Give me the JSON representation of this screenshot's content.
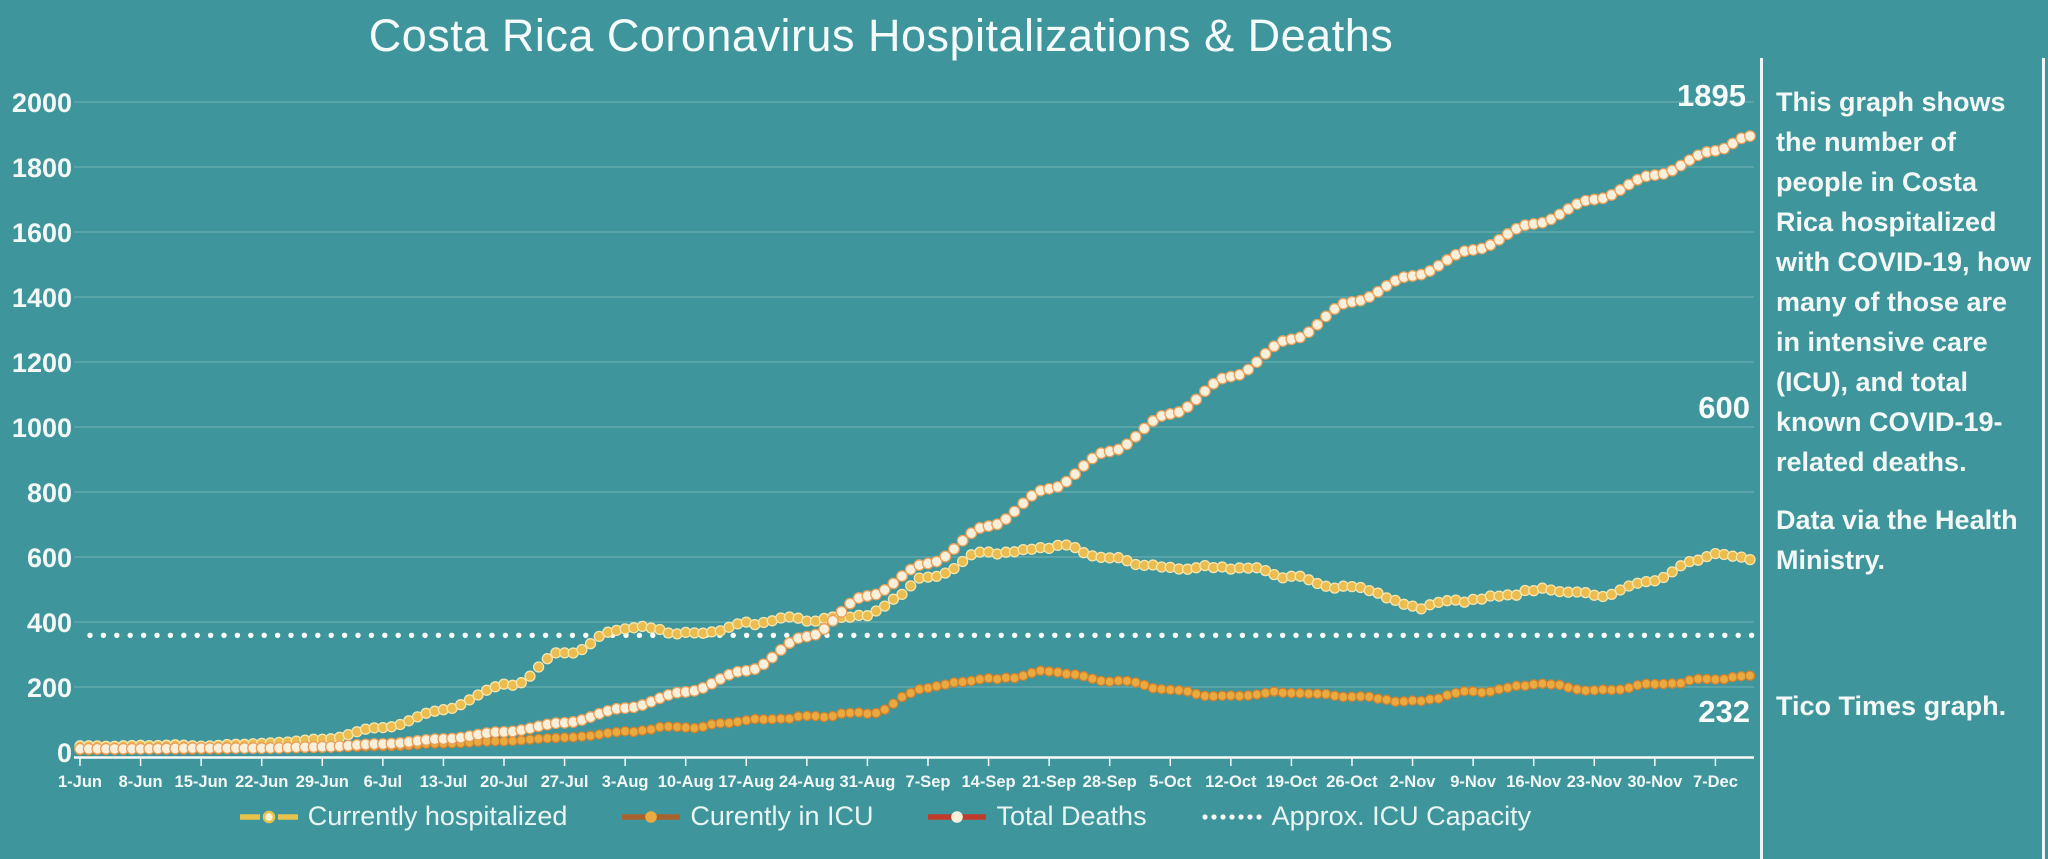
{
  "title": "Costa Rica Coronavirus Hospitalizations & Deaths",
  "colors": {
    "background": "#3E969C",
    "divider": "#EFF5F3",
    "text": "#F3F8F6",
    "gridline": "rgba(255,255,255,0.22)",
    "axis": "#F7FBF8",
    "capacity_dots": "#FBFEFA"
  },
  "side_panel": {
    "description": "This graph shows the number of people in Costa Rica hospitalized with COVID-19, how many of those are in intensive care (ICU), and total known COVID-19-related deaths.",
    "source": "Data via the Health Ministry.",
    "credit": "Tico Times graph."
  },
  "chart_data": {
    "type": "line",
    "title": "Costa Rica Coronavirus Hospitalizations & Deaths",
    "x_frequency": "daily",
    "n_days": 194,
    "x_tick_labels": [
      "1-Jun",
      "8-Jun",
      "15-Jun",
      "22-Jun",
      "29-Jun",
      "6-Jul",
      "13-Jul",
      "20-Jul",
      "27-Jul",
      "3-Aug",
      "10-Aug",
      "17-Aug",
      "24-Aug",
      "31-Aug",
      "7-Sep",
      "14-Sep",
      "21-Sep",
      "28-Sep",
      "5-Oct",
      "12-Oct",
      "19-Oct",
      "26-Oct",
      "2-Nov",
      "9-Nov",
      "16-Nov",
      "23-Nov",
      "30-Nov",
      "7-Dec"
    ],
    "ylim": [
      0,
      2000
    ],
    "y_ticks": [
      0,
      200,
      400,
      600,
      800,
      1000,
      1200,
      1400,
      1600,
      1800,
      2000
    ],
    "grid": true,
    "legend_position": "bottom",
    "series": [
      {
        "name": "currently-hospitalized",
        "legend_label": "Currently hospitalized",
        "dot_color": "#EBBC4E",
        "dot_edge": "#F6E5AE",
        "legend_line_color": "#E7C34C",
        "weekly_values": [
          18,
          20,
          20,
          26,
          40,
          75,
          130,
          205,
          300,
          388,
          362,
          394,
          410,
          420,
          540,
          612,
          632,
          600,
          562,
          572,
          535,
          506,
          452,
          466,
          500,
          482,
          528,
          612
        ],
        "end_value": 600,
        "final_label": "600"
      },
      {
        "name": "currently-in-icu",
        "legend_label": "Curently in ICU",
        "dot_color": "#E9AA3F",
        "dot_edge": "#CE8030",
        "legend_line_color": "#A8622D",
        "weekly_values": [
          6,
          7,
          8,
          10,
          13,
          18,
          26,
          34,
          44,
          62,
          78,
          95,
          110,
          118,
          200,
          225,
          246,
          222,
          190,
          170,
          184,
          169,
          157,
          184,
          209,
          190,
          206,
          228
        ],
        "end_value": 232,
        "final_label": "232"
      },
      {
        "name": "total-deaths",
        "legend_label": "Total Deaths",
        "dot_color": "#F8F0DB",
        "dot_edge": "#EA9F58",
        "legend_line_color": "#C23B2A",
        "weekly_values": [
          10,
          10,
          12,
          12,
          16,
          25,
          40,
          62,
          90,
          135,
          185,
          250,
          355,
          480,
          580,
          695,
          810,
          925,
          1040,
          1155,
          1270,
          1385,
          1465,
          1545,
          1625,
          1700,
          1775,
          1850
        ],
        "end_value": 1895,
        "final_label": "1895"
      },
      {
        "name": "approx-icu-capacity",
        "legend_label": "Approx. ICU Capacity",
        "style": "capacity",
        "dot_color": "#FBFEFA",
        "value": 359
      }
    ]
  }
}
